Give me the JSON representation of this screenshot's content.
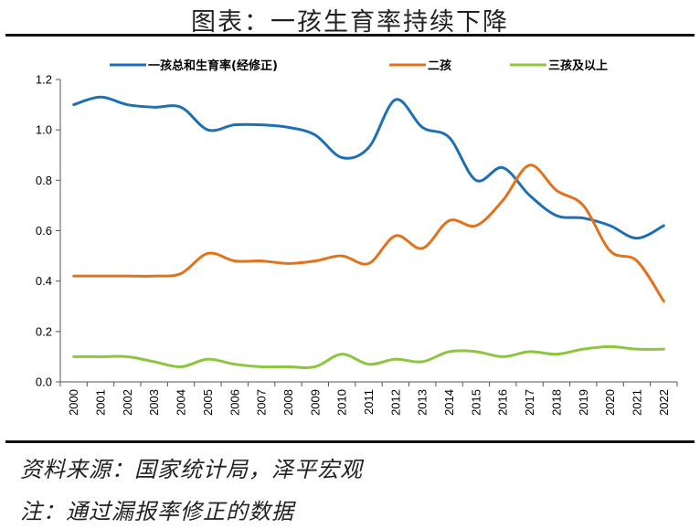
{
  "figure_title": "图表：一孩生育率持续下降",
  "source_note": "资料来源：国家统计局，泽平宏观",
  "remark_note": "注：通过漏报率修正的数据",
  "chart_data": {
    "type": "line",
    "title": "",
    "xlabel": "",
    "ylabel": "",
    "categories": [
      "2000",
      "2001",
      "2002",
      "2003",
      "2004",
      "2005",
      "2006",
      "2007",
      "2008",
      "2009",
      "2010",
      "2011",
      "2012",
      "2013",
      "2014",
      "2015",
      "2016",
      "2017",
      "2018",
      "2019",
      "2020",
      "2021",
      "2022"
    ],
    "ylim": [
      0,
      1.2
    ],
    "yticks": [
      "0.0",
      "0.2",
      "0.4",
      "0.6",
      "0.8",
      "1.0",
      "1.2"
    ],
    "grid": false,
    "legend_position": "top",
    "series": [
      {
        "name": "一孩总和生育率(经修正)",
        "color": "#1f6fb5",
        "values": [
          1.1,
          1.13,
          1.1,
          1.09,
          1.09,
          1.0,
          1.02,
          1.02,
          1.01,
          0.98,
          0.89,
          0.93,
          1.12,
          1.01,
          0.97,
          0.8,
          0.85,
          0.74,
          0.66,
          0.65,
          0.62,
          0.57,
          0.62
        ]
      },
      {
        "name": "二孩",
        "color": "#e2731c",
        "values": [
          0.42,
          0.42,
          0.42,
          0.42,
          0.43,
          0.51,
          0.48,
          0.48,
          0.47,
          0.48,
          0.5,
          0.47,
          0.58,
          0.53,
          0.64,
          0.62,
          0.72,
          0.86,
          0.76,
          0.7,
          0.52,
          0.48,
          0.32
        ]
      },
      {
        "name": "三孩及以上",
        "color": "#8cc63f",
        "values": [
          0.1,
          0.1,
          0.1,
          0.08,
          0.06,
          0.09,
          0.07,
          0.06,
          0.06,
          0.06,
          0.11,
          0.07,
          0.09,
          0.08,
          0.12,
          0.12,
          0.1,
          0.12,
          0.11,
          0.13,
          0.14,
          0.13,
          0.13
        ]
      }
    ]
  }
}
